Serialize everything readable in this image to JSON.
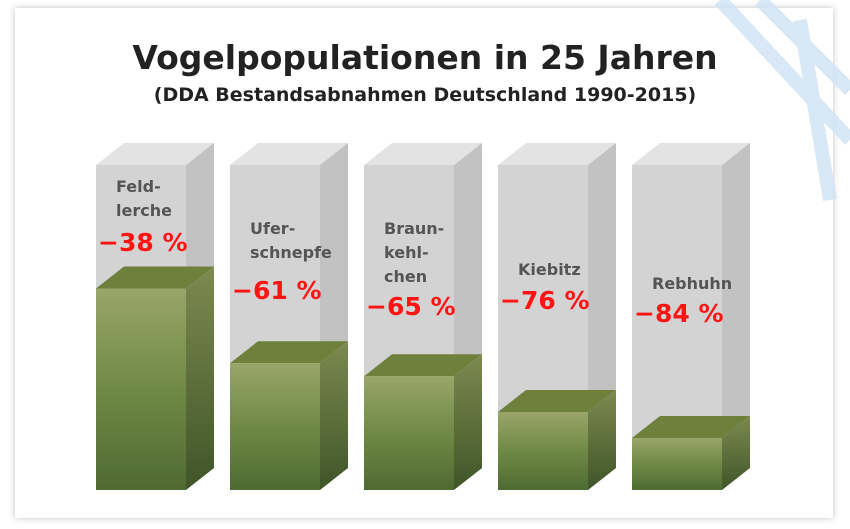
{
  "chart_data": {
    "type": "bar",
    "title": "Vogelpopulationen in 25 Jahren",
    "subtitle": "(DDA Bestandsabnahmen Deutschland 1990-2015)",
    "categories": [
      "Feld-\nlerche",
      "Ufer-\nschnepfe",
      "Braun-\nkehl-\nchen",
      "Kiebitz",
      "Rebhuhn"
    ],
    "values": [
      -38,
      -61,
      -65,
      -76,
      -84
    ],
    "value_labels": [
      "−38 %",
      "−61 %",
      "−65 %",
      "−76 %",
      "−84 %"
    ],
    "ylim": [
      -100,
      0
    ],
    "color": "#6f7f3c"
  }
}
